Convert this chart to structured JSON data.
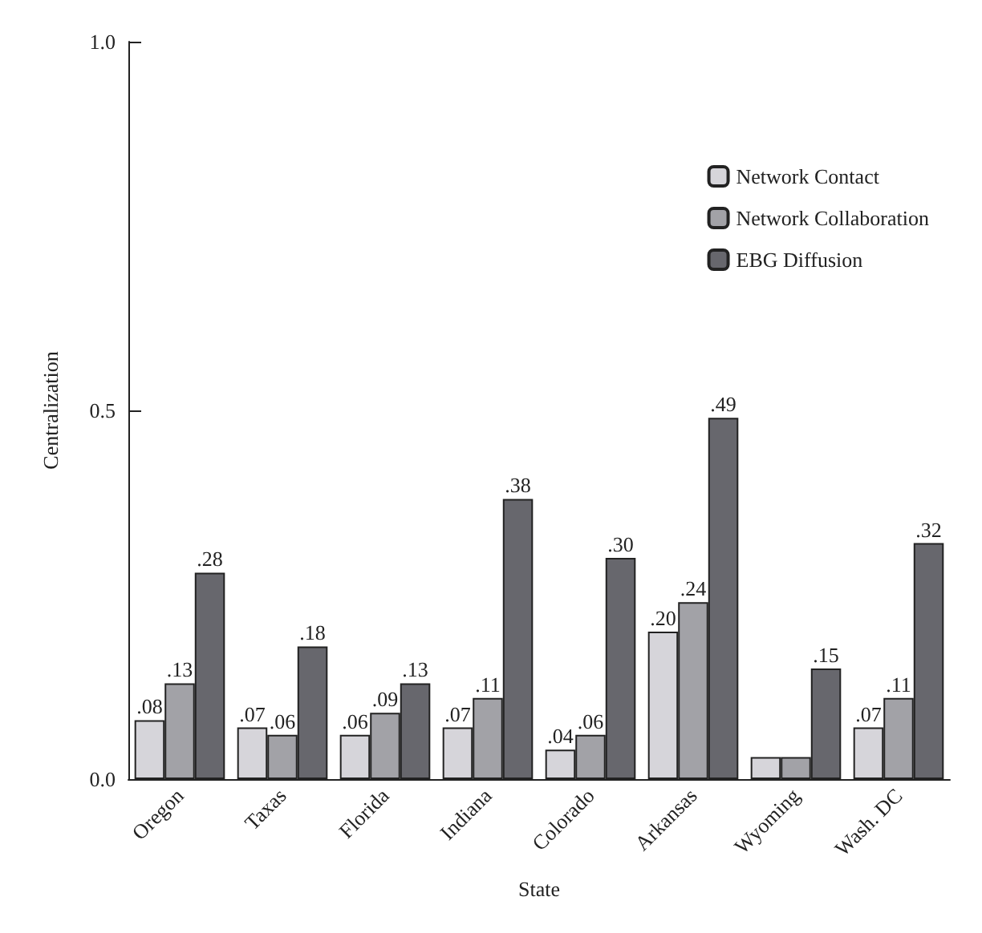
{
  "chart_data": {
    "type": "bar",
    "xlabel": "State",
    "ylabel": "Centralization",
    "categories": [
      "Oregon",
      "Taxas",
      "Florida",
      "Indiana",
      "Colorado",
      "Arkansas",
      "Wyoming",
      "Wash. DC"
    ],
    "series": [
      {
        "name": "Network Contact",
        "color": "#d6d5da",
        "values": [
          0.08,
          0.07,
          0.06,
          0.07,
          0.04,
          0.2,
          0.03,
          0.07
        ],
        "value_labels": [
          ".08",
          ".07",
          ".06",
          ".07",
          ".04",
          ".20",
          null,
          ".07"
        ]
      },
      {
        "name": "Network Collaboration",
        "color": "#a2a2a7",
        "values": [
          0.13,
          0.06,
          0.09,
          0.11,
          0.06,
          0.24,
          0.03,
          0.11
        ],
        "value_labels": [
          ".13",
          ".06",
          ".09",
          ".11",
          ".06",
          ".24",
          null,
          ".11"
        ]
      },
      {
        "name": "EBG Diffusion",
        "color": "#67676d",
        "values": [
          0.28,
          0.18,
          0.13,
          0.38,
          0.3,
          0.49,
          0.15,
          0.32
        ],
        "value_labels": [
          ".28",
          ".18",
          ".13",
          ".38",
          ".30",
          ".49",
          ".15",
          ".32"
        ]
      }
    ],
    "ylim": [
      0,
      1
    ],
    "yticks": [
      {
        "value": 0,
        "label": "0.0"
      },
      {
        "value": 0.5,
        "label": "0.5"
      },
      {
        "value": 1,
        "label": "1.0"
      }
    ],
    "grid": false,
    "legend": "top right"
  }
}
